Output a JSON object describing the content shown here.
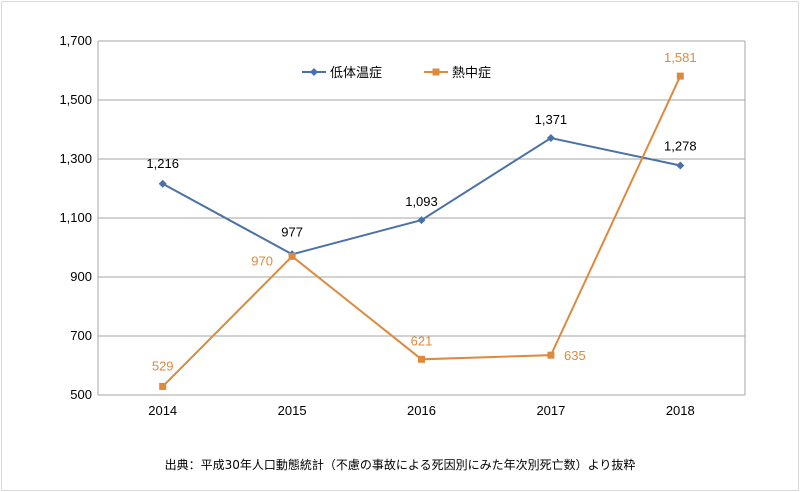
{
  "chart_data": {
    "type": "line",
    "categories": [
      "2014",
      "2015",
      "2016",
      "2017",
      "2018"
    ],
    "series": [
      {
        "name": "低体温症",
        "values": [
          1216,
          977,
          1093,
          1371,
          1278
        ],
        "color": "#4a72a8",
        "marker": "diamond",
        "labels": [
          "1,216",
          "977",
          "1,093",
          "1,371",
          "1,278"
        ]
      },
      {
        "name": "熱中症",
        "values": [
          529,
          970,
          621,
          635,
          1581
        ],
        "color": "#dd8a3e",
        "marker": "square",
        "labels": [
          "529",
          "970",
          "621",
          "635",
          "1,581"
        ]
      }
    ],
    "ylim": [
      500,
      1700
    ],
    "yticks": [
      500,
      700,
      900,
      1100,
      1300,
      1500,
      1700
    ],
    "ytick_labels": [
      "500",
      "700",
      "900",
      "1,100",
      "1,300",
      "1,500",
      "1,700"
    ],
    "grid": true,
    "legend": "top-center",
    "gridColor": "#a6a6a6",
    "axisColor": "#a6a6a6",
    "source_note": "出典：平成30年人口動態統計（不慮の事故による死因別にみた年次別死亡数）より抜粋"
  }
}
